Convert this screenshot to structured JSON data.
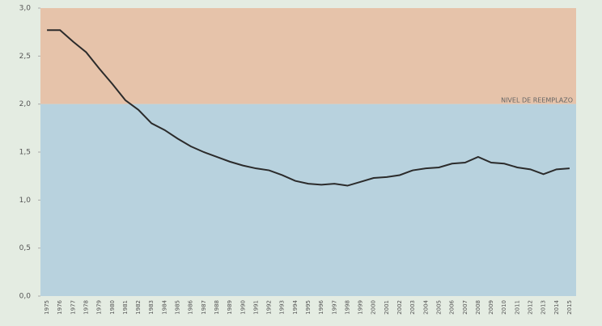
{
  "chart_data": {
    "type": "line",
    "categories": [
      "1975",
      "1976",
      "1977",
      "1978",
      "1979",
      "1980",
      "1981",
      "1982",
      "1983",
      "1984",
      "1985",
      "1986",
      "1987",
      "1988",
      "1989",
      "1990",
      "1991",
      "1992",
      "1993",
      "1994",
      "1995",
      "1996",
      "1997",
      "1998",
      "1999",
      "2000",
      "2001",
      "2002",
      "2003",
      "2004",
      "2005",
      "2006",
      "2007",
      "2008",
      "2009",
      "2010",
      "2011",
      "2012",
      "2013",
      "2014",
      "2015"
    ],
    "series": [
      {
        "color": "#2b2b2b",
        "values": [
          2.77,
          2.77,
          2.65,
          2.54,
          2.37,
          2.21,
          2.04,
          1.94,
          1.8,
          1.73,
          1.64,
          1.56,
          1.5,
          1.45,
          1.4,
          1.36,
          1.33,
          1.31,
          1.26,
          1.2,
          1.17,
          1.16,
          1.17,
          1.15,
          1.19,
          1.23,
          1.24,
          1.26,
          1.31,
          1.33,
          1.34,
          1.38,
          1.39,
          1.45,
          1.39,
          1.38,
          1.34,
          1.32,
          1.27,
          1.32,
          1.33
        ]
      }
    ],
    "ylim": [
      0,
      3
    ],
    "yticks": [
      {
        "value": 0,
        "label": "0,0"
      },
      {
        "value": 0.5,
        "label": "0,5"
      },
      {
        "value": 1,
        "label": "1,0"
      },
      {
        "value": 1.5,
        "label": "1,5"
      },
      {
        "value": 2,
        "label": "2,0"
      },
      {
        "value": 2.5,
        "label": "2,5"
      },
      {
        "value": 3,
        "label": "3,0"
      }
    ],
    "reference": {
      "value": 2,
      "label": "NIVEL DE REEMPLAZO",
      "above_color": "#e6c3aa",
      "below_color": "#b8d2de"
    }
  }
}
